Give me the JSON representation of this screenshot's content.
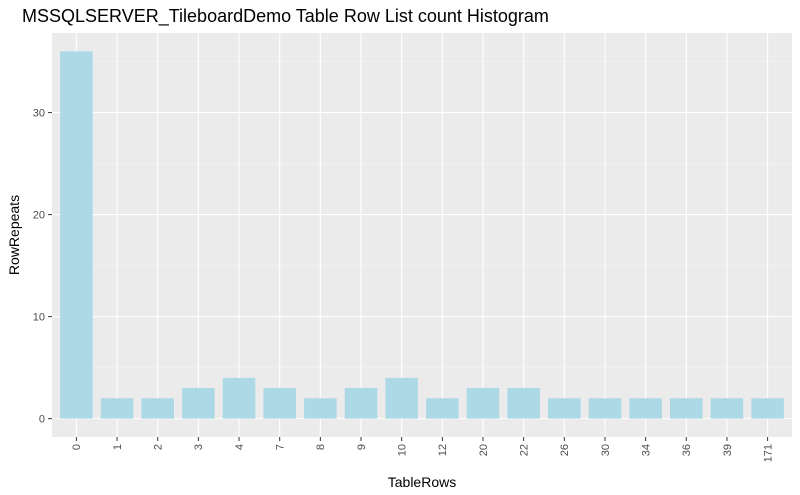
{
  "chart_data": {
    "type": "bar",
    "title": "MSSQLSERVER_TileboardDemo Table Row List count Histogram",
    "xlabel": "TableRows",
    "ylabel": "RowRepeats",
    "categories": [
      "0",
      "1",
      "2",
      "3",
      "4",
      "7",
      "8",
      "9",
      "10",
      "12",
      "20",
      "22",
      "26",
      "30",
      "34",
      "36",
      "39",
      "171"
    ],
    "values": [
      36,
      2,
      2,
      3,
      4,
      3,
      2,
      3,
      4,
      2,
      3,
      3,
      2,
      2,
      2,
      2,
      2,
      2
    ],
    "ylim": [
      -1.8,
      37.8
    ],
    "yticks": [
      0,
      10,
      20,
      30
    ],
    "grid": true,
    "colors": {
      "bar": "#add8e6",
      "panel": "#ebebeb",
      "grid_major": "#ffffff",
      "grid_minor": "#f5f5f5"
    }
  }
}
